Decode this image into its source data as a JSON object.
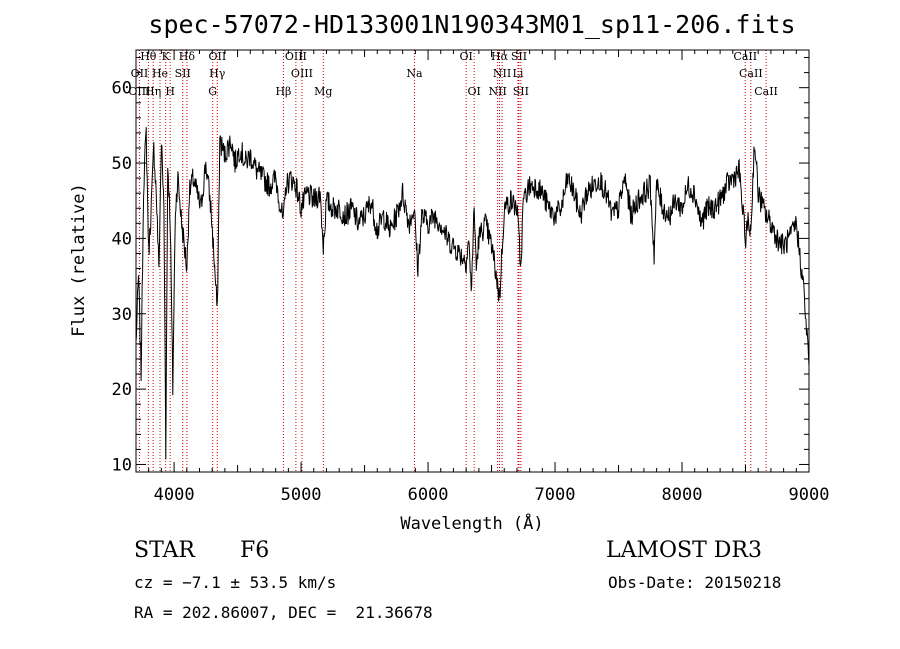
{
  "chart_data": {
    "type": "line",
    "title": "spec-57072-HD133001N190343M01_sp11-206.fits",
    "xlabel": "Wavelength (Å)",
    "ylabel": "Flux (relative)",
    "xlim": [
      3700,
      9000
    ],
    "ylim": [
      9,
      65
    ],
    "xticks": [
      4000,
      5000,
      6000,
      7000,
      8000,
      9000
    ],
    "yticks": [
      10,
      20,
      30,
      40,
      50,
      60
    ],
    "grid": false,
    "series": [
      {
        "x": [
          3700,
          3720,
          3740,
          3760,
          3780,
          3800,
          3820,
          3840,
          3860,
          3880,
          3900,
          3920,
          3935,
          3950,
          3970,
          3990,
          4010,
          4030,
          4060,
          4101,
          4120,
          4150,
          4180,
          4210,
          4250,
          4290,
          4320,
          4340,
          4360,
          4380,
          4400,
          4420,
          4450,
          4480,
          4520,
          4560,
          4600,
          4650,
          4700,
          4750,
          4800,
          4861,
          4880,
          4920,
          4960,
          5000,
          5050,
          5100,
          5150,
          5175,
          5200,
          5250,
          5300,
          5350,
          5400,
          5450,
          5500,
          5550,
          5600,
          5650,
          5700,
          5750,
          5800,
          5850,
          5890,
          5920,
          5950,
          6000,
          6050,
          6100,
          6150,
          6200,
          6250,
          6300,
          6320,
          6340,
          6363,
          6380,
          6400,
          6450,
          6500,
          6520,
          6563,
          6600,
          6650,
          6700,
          6731,
          6750,
          6800,
          6850,
          6900,
          6950,
          7000,
          7050,
          7100,
          7150,
          7200,
          7250,
          7300,
          7350,
          7400,
          7450,
          7500,
          7550,
          7600,
          7650,
          7700,
          7750,
          7780,
          7800,
          7850,
          7900,
          7950,
          8000,
          8050,
          8100,
          8150,
          8200,
          8250,
          8300,
          8350,
          8400,
          8450,
          8498,
          8520,
          8542,
          8570,
          8600,
          8640,
          8662,
          8700,
          8750,
          8800,
          8850,
          8900,
          8940,
          8960,
          8980,
          9000
        ],
        "y": [
          26,
          35,
          22,
          47,
          54,
          38,
          44,
          52,
          46,
          36,
          53,
          44,
          12,
          50,
          42,
          20,
          44,
          48,
          42,
          36,
          46,
          48,
          46,
          44,
          50,
          44,
          36,
          30,
          53,
          52,
          51,
          52,
          53,
          50,
          52,
          50,
          51,
          49,
          48,
          47,
          48,
          42,
          47,
          48,
          47,
          44,
          46,
          45,
          46,
          39,
          45,
          44,
          44,
          43,
          44,
          42,
          43,
          45,
          41,
          43,
          41,
          43,
          46,
          42,
          44,
          36,
          43,
          42,
          43,
          42,
          40,
          39,
          38,
          37,
          40,
          33,
          44,
          36,
          40,
          42,
          39,
          37,
          32,
          44,
          45,
          44,
          36,
          45,
          47,
          47,
          46,
          44,
          43,
          44,
          48,
          46,
          43,
          46,
          47,
          48,
          46,
          43,
          44,
          48,
          43,
          45,
          46,
          47,
          38,
          47,
          44,
          43,
          45,
          44,
          47,
          46,
          42,
          44,
          44,
          45,
          47,
          48,
          49,
          40,
          42,
          41,
          53,
          46,
          44,
          43,
          42,
          40,
          39,
          40,
          42,
          36,
          33,
          28,
          23
        ]
      }
    ],
    "annotations": [
      {
        "text": "Hθ",
        "x": 3797,
        "row": 1
      },
      {
        "text": "K",
        "x": 3934,
        "row": 1
      },
      {
        "text": "Hδ",
        "x": 4101,
        "row": 1
      },
      {
        "text": "OII",
        "x": 4341,
        "row": 1
      },
      {
        "text": "OIII",
        "x": 4959,
        "row": 1
      },
      {
        "text": "OI",
        "x": 6300,
        "row": 1
      },
      {
        "text": "Hα",
        "x": 6563,
        "row": 1
      },
      {
        "text": "SII",
        "x": 6716,
        "row": 1
      },
      {
        "text": "CaII",
        "x": 8498,
        "row": 1
      },
      {
        "text": "OII",
        "x": 3727,
        "row": 2
      },
      {
        "text": "He",
        "x": 3889,
        "row": 2
      },
      {
        "text": "SII",
        "x": 4068,
        "row": 2
      },
      {
        "text": "Hγ",
        "x": 4340,
        "row": 2
      },
      {
        "text": "OIII",
        "x": 5007,
        "row": 2
      },
      {
        "text": "Na",
        "x": 5893,
        "row": 2
      },
      {
        "text": "NII",
        "x": 6583,
        "row": 2
      },
      {
        "text": "Li",
        "x": 6708,
        "row": 2
      },
      {
        "text": "CaII",
        "x": 8542,
        "row": 2
      },
      {
        "text": "OIII",
        "x": 3727,
        "row": 3
      },
      {
        "text": "Hη",
        "x": 3835,
        "row": 3
      },
      {
        "text": "H",
        "x": 3969,
        "row": 3
      },
      {
        "text": "G",
        "x": 4304,
        "row": 3
      },
      {
        "text": "Hβ",
        "x": 4861,
        "row": 3
      },
      {
        "text": "Mg",
        "x": 5175,
        "row": 3
      },
      {
        "text": "OI",
        "x": 6363,
        "row": 3
      },
      {
        "text": "NII",
        "x": 6548,
        "row": 3
      },
      {
        "text": "SII",
        "x": 6731,
        "row": 3
      },
      {
        "text": "CaII",
        "x": 8662,
        "row": 3
      }
    ],
    "line_markers": [
      3727,
      3797,
      3835,
      3889,
      3934,
      3969,
      4068,
      4101,
      4304,
      4340,
      4861,
      4959,
      5007,
      5175,
      5893,
      6300,
      6363,
      6548,
      6563,
      6583,
      6708,
      6716,
      6731,
      8498,
      8542,
      8662
    ]
  },
  "info": {
    "class": "STAR",
    "subclass": "F6",
    "survey": "LAMOST DR3",
    "redshift": "cz = −7.1 ± 53.5 km/s",
    "obs_date": "Obs-Date: 20150218",
    "coords": "RA = 202.86007, DEC =  21.36678"
  },
  "colors": {
    "marker": "#cc0000",
    "data": "#000000"
  }
}
